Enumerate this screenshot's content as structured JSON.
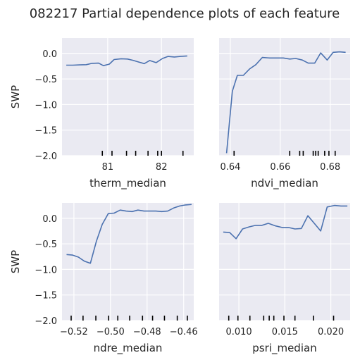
{
  "chart_data": {
    "title": "082217 Partial dependence plots of each feature",
    "style": {
      "background": "#eaeaf2",
      "grid": "#ffffff",
      "line": "#4c72b0",
      "rug": "#000000"
    },
    "panels": [
      {
        "type": "line",
        "xlabel": "therm_median",
        "ylabel": "SWP",
        "xlim": [
          80.15,
          82.6
        ],
        "ylim": [
          -2.0,
          0.3
        ],
        "xticks": [
          81,
          82
        ],
        "xtick_labels": [
          "81",
          "82"
        ],
        "yticks": [
          0.0,
          -0.5,
          -1.0,
          -1.5,
          -2.0
        ],
        "ytick_labels": [
          "0.0",
          "−0.5",
          "−1.0",
          "−1.5",
          "−2.0"
        ],
        "show_yticklabels": true,
        "x": [
          80.23,
          80.35,
          80.48,
          80.6,
          80.71,
          80.83,
          80.92,
          81.03,
          81.12,
          81.25,
          81.37,
          81.47,
          81.58,
          81.68,
          81.78,
          81.9,
          82.02,
          82.12,
          82.24,
          82.35,
          82.48
        ],
        "y": [
          -0.23,
          -0.23,
          -0.225,
          -0.22,
          -0.195,
          -0.19,
          -0.24,
          -0.21,
          -0.12,
          -0.105,
          -0.11,
          -0.135,
          -0.17,
          -0.2,
          -0.14,
          -0.18,
          -0.1,
          -0.06,
          -0.07,
          -0.06,
          -0.05
        ],
        "rug": [
          80.9,
          81.08,
          81.35,
          81.52,
          81.75,
          81.93,
          82.0,
          82.4
        ]
      },
      {
        "type": "line",
        "xlabel": "ndvi_median",
        "ylabel": "",
        "xlim": [
          0.6355,
          0.688
        ],
        "ylim": [
          -2.0,
          0.3
        ],
        "xticks": [
          0.64,
          0.66,
          0.68
        ],
        "xtick_labels": [
          "0.64",
          "0.66",
          "0.68"
        ],
        "yticks": [
          0.0,
          -0.5,
          -1.0,
          -1.5,
          -2.0
        ],
        "ytick_labels": [],
        "show_yticklabels": false,
        "x": [
          0.6385,
          0.6408,
          0.6428,
          0.6452,
          0.6478,
          0.6502,
          0.6528,
          0.6558,
          0.6585,
          0.6612,
          0.6638,
          0.6662,
          0.6688,
          0.6712,
          0.6738,
          0.6762,
          0.6788,
          0.6812,
          0.6838,
          0.6862
        ],
        "y": [
          -1.95,
          -0.74,
          -0.43,
          -0.43,
          -0.3,
          -0.22,
          -0.08,
          -0.09,
          -0.09,
          -0.09,
          -0.11,
          -0.1,
          -0.13,
          -0.19,
          -0.19,
          0.01,
          -0.13,
          0.02,
          0.03,
          0.02
        ],
        "rug": [
          0.6415,
          0.6638,
          0.6678,
          0.6692,
          0.6732,
          0.6742,
          0.6752,
          0.6778,
          0.6795,
          0.682
        ]
      },
      {
        "type": "line",
        "xlabel": "ndre_median",
        "ylabel": "SWP",
        "xlim": [
          -0.5265,
          -0.4545
        ],
        "ylim": [
          -2.0,
          0.3
        ],
        "xticks": [
          -0.52,
          -0.5,
          -0.48,
          -0.46
        ],
        "xtick_labels": [
          "−0.52",
          "−0.50",
          "−0.48",
          "−0.46"
        ],
        "yticks": [
          0.0,
          -0.5,
          -1.0,
          -1.5,
          -2.0
        ],
        "ytick_labels": [
          "0.0",
          "−0.5",
          "−1.0",
          "−1.5",
          "−2.0"
        ],
        "show_yticklabels": true,
        "x": [
          -0.524,
          -0.5207,
          -0.5175,
          -0.5142,
          -0.511,
          -0.5077,
          -0.5045,
          -0.5012,
          -0.498,
          -0.4947,
          -0.4915,
          -0.4882,
          -0.485,
          -0.4817,
          -0.4785,
          -0.4752,
          -0.472,
          -0.4687,
          -0.4655,
          -0.4622,
          -0.459,
          -0.4557
        ],
        "y": [
          -0.71,
          -0.72,
          -0.76,
          -0.84,
          -0.88,
          -0.45,
          -0.12,
          0.09,
          0.1,
          0.16,
          0.14,
          0.13,
          0.16,
          0.14,
          0.14,
          0.14,
          0.13,
          0.14,
          0.2,
          0.24,
          0.26,
          0.27
        ],
        "rug": [
          -0.5215,
          -0.515,
          -0.508,
          -0.501,
          -0.496,
          -0.4895,
          -0.4825,
          -0.477,
          -0.4705,
          -0.4635,
          -0.458
        ]
      },
      {
        "type": "line",
        "xlabel": "psri_median",
        "ylabel": "",
        "xlim": [
          0.00785,
          0.0221
        ],
        "ylim": [
          -2.0,
          0.3
        ],
        "xticks": [
          0.01,
          0.015,
          0.02
        ],
        "xtick_labels": [
          "0.010",
          "0.015",
          "0.020"
        ],
        "yticks": [
          0.0,
          -0.5,
          -1.0,
          -1.5,
          -2.0
        ],
        "ytick_labels": [],
        "show_yticklabels": false,
        "x": [
          0.0083,
          0.009,
          0.0097,
          0.0104,
          0.0111,
          0.0118,
          0.0125,
          0.0132,
          0.014,
          0.0147,
          0.0154,
          0.0161,
          0.0168,
          0.0175,
          0.0182,
          0.0189,
          0.0196,
          0.0204,
          0.0211,
          0.0218
        ],
        "y": [
          -0.27,
          -0.28,
          -0.4,
          -0.21,
          -0.17,
          -0.14,
          -0.14,
          -0.1,
          -0.15,
          -0.18,
          -0.18,
          -0.21,
          -0.2,
          0.05,
          -0.1,
          -0.25,
          0.22,
          0.25,
          0.24,
          0.24
        ],
        "rug": [
          0.0089,
          0.0099,
          0.0112,
          0.0127,
          0.0133,
          0.0138,
          0.0149,
          0.0161,
          0.0181,
          0.0203
        ]
      }
    ]
  }
}
